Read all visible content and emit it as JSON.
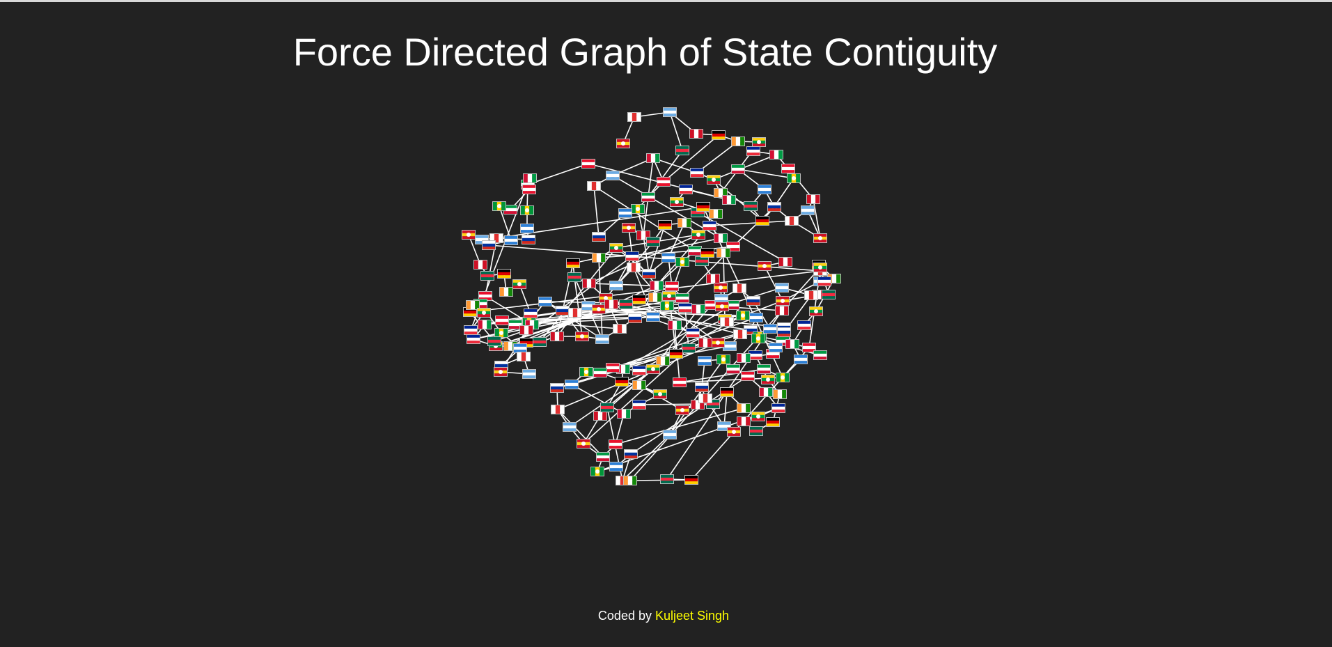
{
  "page": {
    "title": "Force Directed Graph of State Contiguity"
  },
  "footer": {
    "prefix": "Coded by ",
    "author": "Kuljeet Singh"
  },
  "colors": {
    "background": "#222222",
    "title": "#ffffff",
    "link": "#ffffff",
    "author": "#ffff00",
    "flag_border": "#bdbdbd"
  },
  "graph": {
    "node_type": "country-flag-icon",
    "flag_palette": [
      [
        "#ffffff",
        "#e03030",
        "#ffffff"
      ],
      [
        "#2c7fd6",
        "#ffffff",
        "#2c7fd6"
      ],
      [
        "#009a44",
        "#ffffff",
        "#d21034"
      ],
      [
        "#d21034",
        "#ffffff",
        "#009a44"
      ],
      [
        "#fcd116",
        "#009a44",
        "#ce1126"
      ],
      [
        "#000000",
        "#dd0000",
        "#ffce00"
      ],
      [
        "#ce1126",
        "#ffffff",
        "#ce1126"
      ],
      [
        "#6cace4",
        "#ffffff",
        "#6cace4"
      ],
      [
        "#ffffff",
        "#0033a0",
        "#d52b1e"
      ],
      [
        "#009639",
        "#ffd100",
        "#009639"
      ],
      [
        "#e8112d",
        "#ffffff",
        "#e8112d"
      ],
      [
        "#002395",
        "#ffffff",
        "#ed2939"
      ],
      [
        "#ff9933",
        "#ffffff",
        "#138808"
      ],
      [
        "#006a4e",
        "#f42a41",
        "#006a4e"
      ],
      [
        "#ce1126",
        "#fcd116",
        "#ce1126"
      ]
    ]
  }
}
